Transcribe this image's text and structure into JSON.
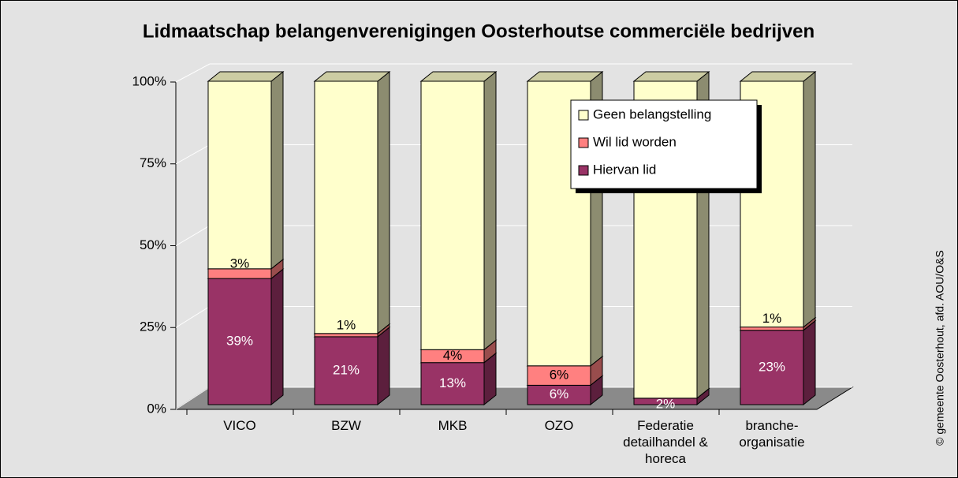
{
  "chart_data": {
    "type": "stacked_bar_3d",
    "title": "Lidmaatschap belangenverenigingen Oosterhoutse commerciële bedrijven",
    "source": "© gemeente Oosterhout, afd. AOU/O&S",
    "categories": [
      "VICO",
      "BZW",
      "MKB",
      "OZO",
      "Federatie detailhandel & horeca",
      "branche-organisatie"
    ],
    "series": [
      {
        "name": "Hiervan lid",
        "color": "#993366",
        "values": [
          39,
          21,
          13,
          6,
          2,
          23
        ],
        "value_labels": [
          "39%",
          "21%",
          "13%",
          "6%",
          "2%",
          "23%"
        ]
      },
      {
        "name": "Wil lid worden",
        "color": "#ff8080",
        "values": [
          3,
          1,
          4,
          6,
          0,
          1
        ],
        "value_labels": [
          "3%",
          "1%",
          "4%",
          "6%",
          null,
          "1%"
        ]
      },
      {
        "name": "Geen belangstelling",
        "color": "#ffffcc",
        "values": [
          58,
          78,
          83,
          88,
          98,
          76
        ]
      }
    ],
    "ylim": [
      0,
      100
    ],
    "yticks": [
      {
        "value": 0,
        "label": "0%"
      },
      {
        "value": 25,
        "label": "25%"
      },
      {
        "value": 50,
        "label": "50%"
      },
      {
        "value": 75,
        "label": "75%"
      },
      {
        "value": 100,
        "label": "100%"
      }
    ],
    "grid": true,
    "legend": "upper right"
  }
}
